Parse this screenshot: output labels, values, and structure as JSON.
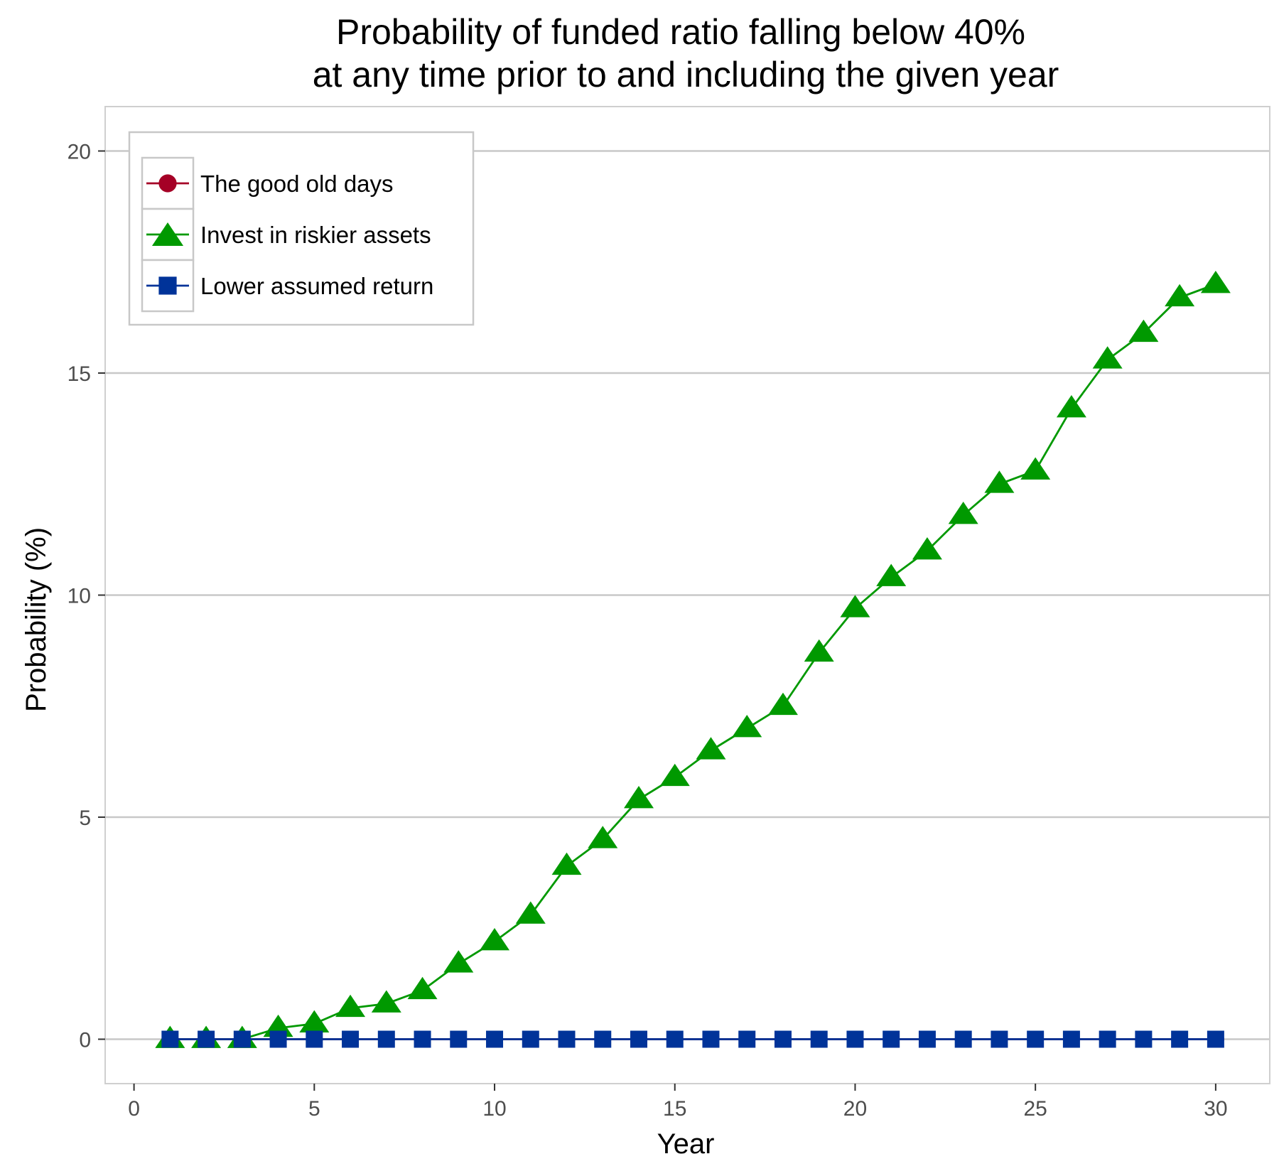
{
  "chart_data": {
    "type": "line",
    "title": "Probability of funded ratio falling below 40%",
    "subtitle": "at any time prior to and including the given year",
    "xlabel": "Year",
    "ylabel": "Probability (%)",
    "xlim": [
      -0.8,
      31.5
    ],
    "ylim": [
      -1,
      21
    ],
    "xticks": [
      0,
      5,
      10,
      15,
      20,
      25,
      30
    ],
    "yticks": [
      0,
      5,
      10,
      15,
      20
    ],
    "grid": "horizontal",
    "legend_position": "top-left",
    "x": [
      1,
      2,
      3,
      4,
      5,
      6,
      7,
      8,
      9,
      10,
      11,
      12,
      13,
      14,
      15,
      16,
      17,
      18,
      19,
      20,
      21,
      22,
      23,
      24,
      25,
      26,
      27,
      28,
      29,
      30
    ],
    "series": [
      {
        "name": "The good old days",
        "color": "#a50026",
        "marker": "circle",
        "values": [
          0,
          0,
          0,
          0,
          0,
          0,
          0,
          0,
          0,
          0,
          0,
          0,
          0,
          0,
          0,
          0,
          0,
          0,
          0,
          0,
          0,
          0,
          0,
          0,
          0,
          0,
          0,
          0,
          0,
          0
        ]
      },
      {
        "name": "Invest in riskier assets",
        "color": "#009900",
        "marker": "triangle",
        "values": [
          0,
          0,
          0,
          0.25,
          0.35,
          0.7,
          0.8,
          1.1,
          1.7,
          2.2,
          2.8,
          3.9,
          4.5,
          5.4,
          5.9,
          6.5,
          7.0,
          7.5,
          8.7,
          9.7,
          10.4,
          11.0,
          11.8,
          12.5,
          12.8,
          14.2,
          15.3,
          15.9,
          16.7,
          17.0
        ]
      },
      {
        "name": "Lower assumed return",
        "color": "#003399",
        "marker": "square",
        "values": [
          0,
          0,
          0,
          0,
          0,
          0,
          0,
          0,
          0,
          0,
          0,
          0,
          0,
          0,
          0,
          0,
          0,
          0,
          0,
          0,
          0,
          0,
          0,
          0,
          0,
          0,
          0,
          0,
          0,
          0
        ]
      }
    ]
  }
}
